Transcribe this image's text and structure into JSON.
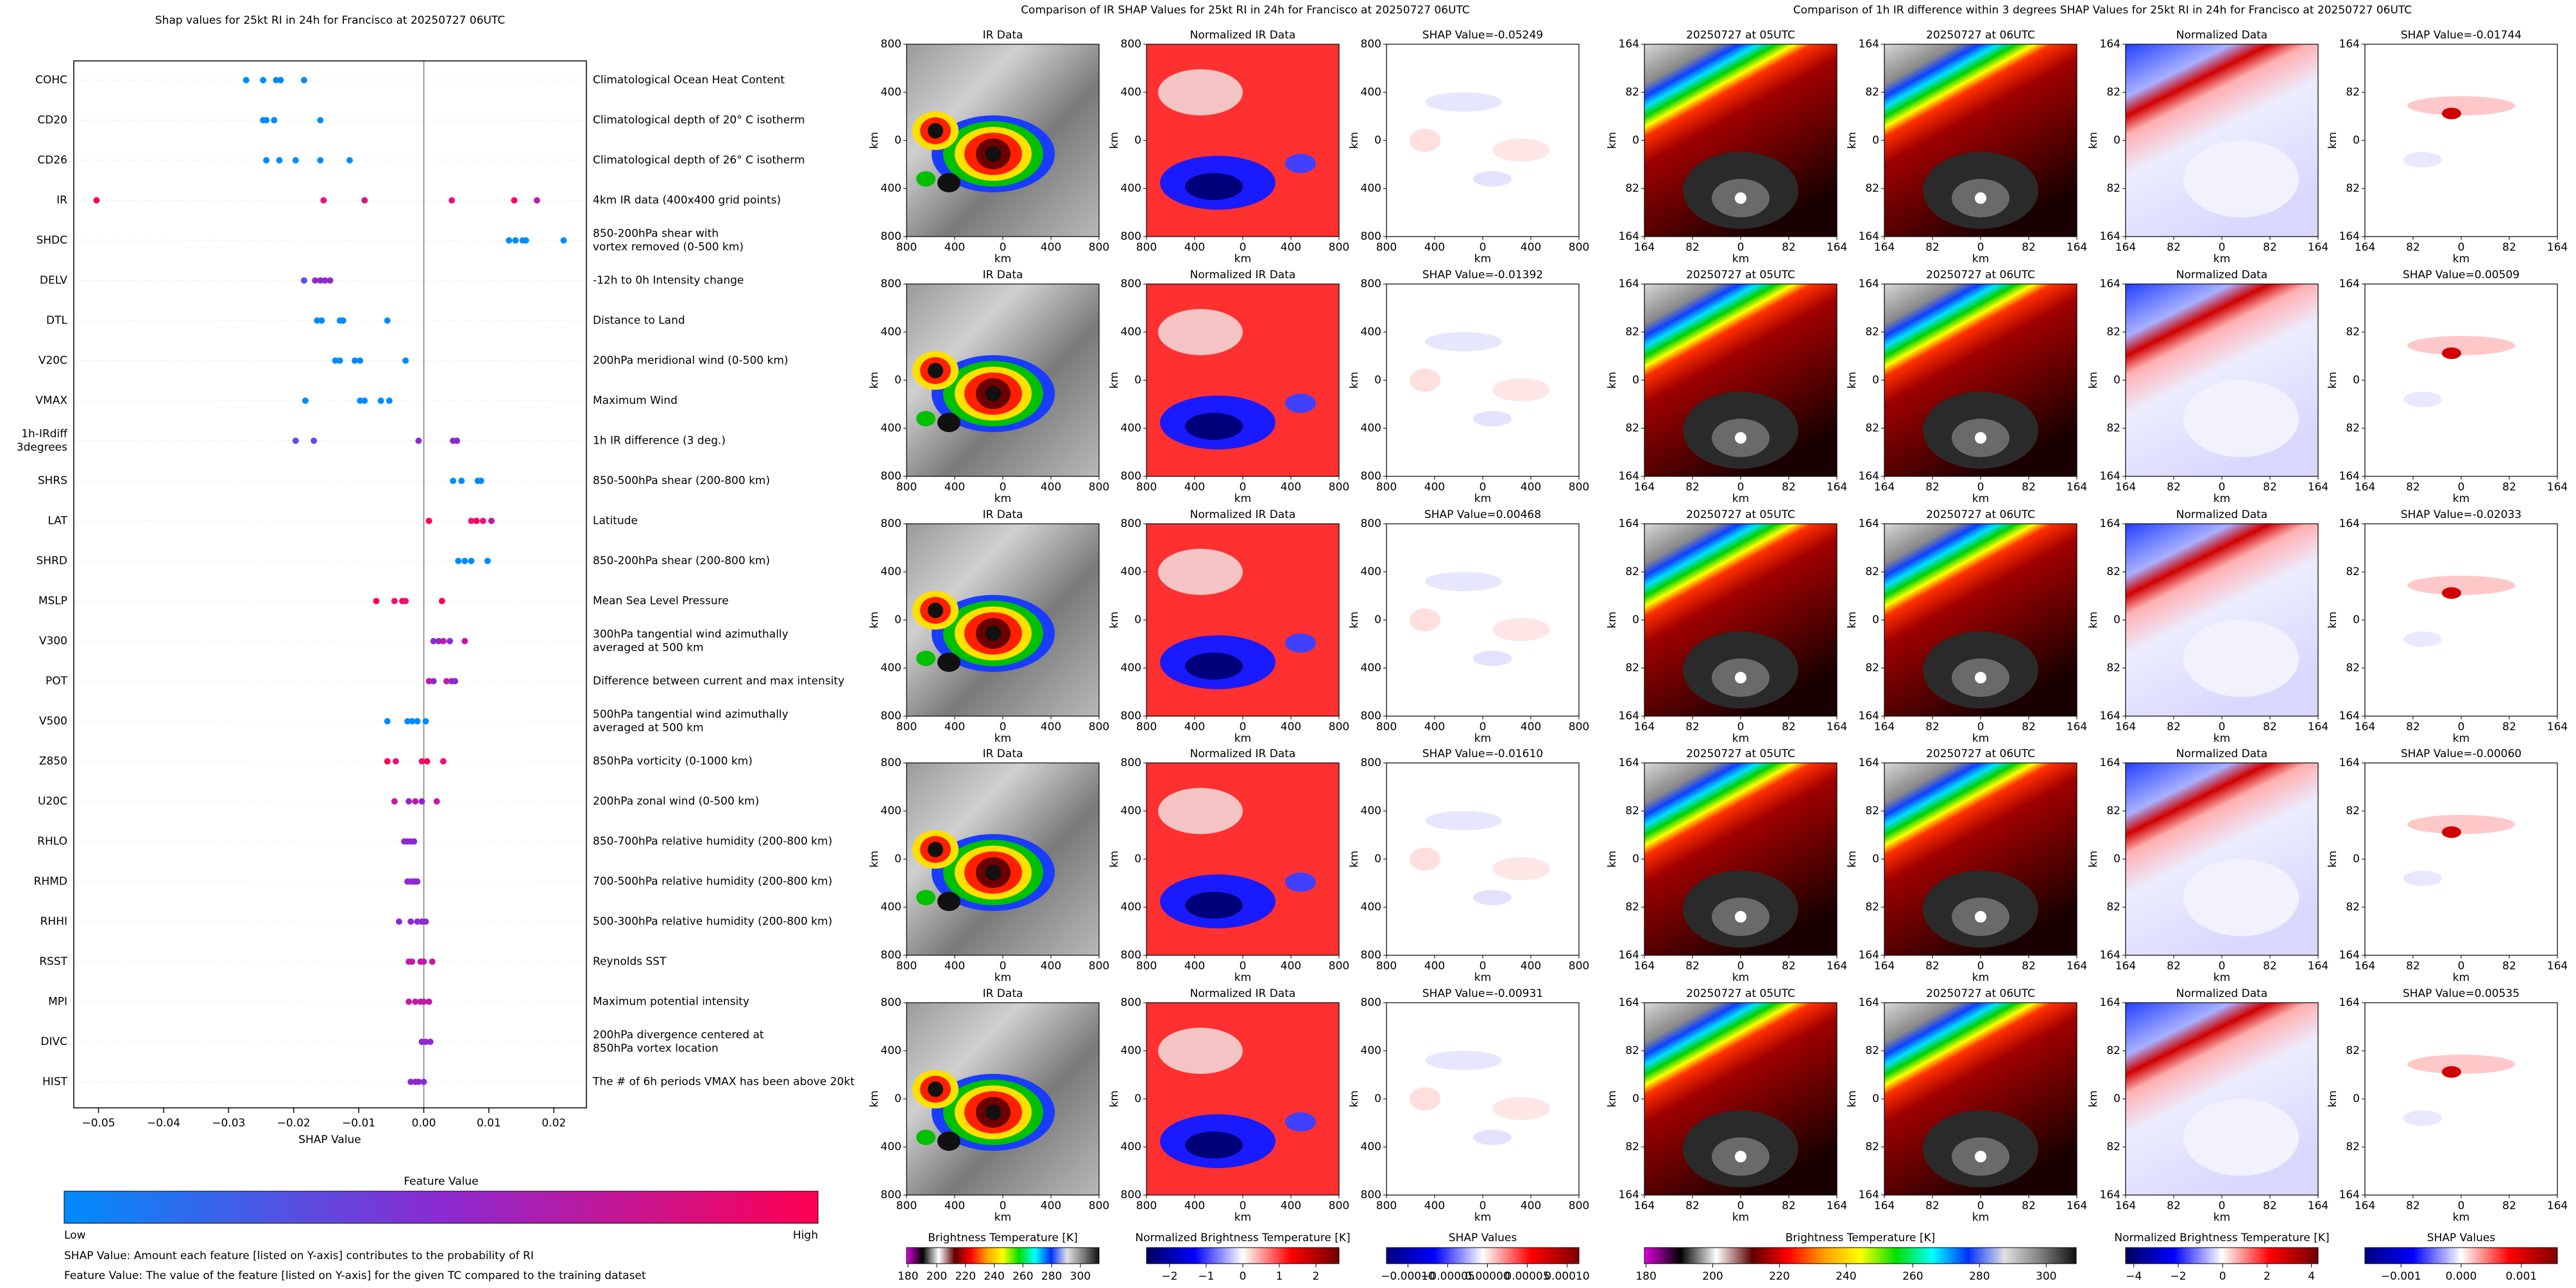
{
  "chart_data": [
    {
      "type": "scatter",
      "title": "Shap values for 25kt RI in 24h for Francisco at 20250727 06UTC",
      "xlabel": "SHAP Value",
      "xlim": [
        -0.0538,
        0.025
      ],
      "xticks": [
        {
          "value": -0.05,
          "label": "−0.05"
        },
        {
          "value": -0.04,
          "label": "−0.04"
        },
        {
          "value": -0.03,
          "label": "−0.03"
        },
        {
          "value": -0.02,
          "label": "−0.02"
        },
        {
          "value": -0.01,
          "label": "−0.01"
        },
        {
          "value": 0,
          "label": "0.00"
        },
        {
          "value": 0.01,
          "label": "0.01"
        },
        {
          "value": 0.02,
          "label": "0.02"
        }
      ],
      "features": [
        {
          "label": [
            "COHC"
          ],
          "description": [
            "Climatological Ocean Heat Content"
          ],
          "values": [
            -0.0273,
            -0.0247,
            -0.0227,
            -0.022,
            -0.0184
          ],
          "colors": [
            "#008bfb",
            "#008bfb",
            "#008bfb",
            "#008bfb",
            "#008bfb"
          ]
        },
        {
          "label": [
            "CD20"
          ],
          "description": [
            "Climatological depth of 20° C isotherm"
          ],
          "values": [
            -0.0247,
            -0.0242,
            -0.023,
            -0.0159
          ],
          "colors": [
            "#008bfb",
            "#008bfb",
            "#008bfb",
            "#008bfb"
          ]
        },
        {
          "label": [
            "CD26"
          ],
          "description": [
            "Climatological depth of 26° C isotherm"
          ],
          "values": [
            -0.0242,
            -0.0222,
            -0.0197,
            -0.0159,
            -0.0114
          ],
          "colors": [
            "#008bfb",
            "#008bfb",
            "#008bfb",
            "#008bfb",
            "#008bfb"
          ]
        },
        {
          "label": [
            "IR"
          ],
          "description": [
            "4km IR data (400x400 grid points)"
          ],
          "values": [
            -0.0503,
            -0.0154,
            -0.0091,
            0.0043,
            0.0139,
            0.0174
          ],
          "colors": [
            "#ff0052",
            "#e8127c",
            "#d8148c",
            "#e8127c",
            "#ff0066",
            "#c21aa6"
          ]
        },
        {
          "label": [
            "SHDC"
          ],
          "description": [
            "850-200hPa shear with",
            "vortex removed (0-500 km)"
          ],
          "values": [
            0.0131,
            0.0141,
            0.0152,
            0.0157,
            0.0215
          ],
          "colors": [
            "#008bfb",
            "#008bfb",
            "#008bfb",
            "#008bfb",
            "#008bfb"
          ]
        },
        {
          "label": [
            "DELV"
          ],
          "description": [
            "-12h to 0h Intensity change"
          ],
          "values": [
            -0.0184,
            -0.0167,
            -0.0159,
            -0.0152,
            -0.0144
          ],
          "colors": [
            "#5a4fe6",
            "#8c2ad0",
            "#8c2ad0",
            "#8c2ad0",
            "#8c2ad0"
          ]
        },
        {
          "label": [
            "DTL"
          ],
          "description": [
            "Distance to Land"
          ],
          "values": [
            -0.0164,
            -0.0157,
            -0.0129,
            -0.0124,
            -0.0056
          ],
          "colors": [
            "#008bfb",
            "#008bfb",
            "#008bfb",
            "#008bfb",
            "#008bfb"
          ]
        },
        {
          "label": [
            "V20C"
          ],
          "description": [
            "200hPa meridional wind (0-500 km)"
          ],
          "values": [
            -0.0136,
            -0.0129,
            -0.0106,
            -0.0098,
            -0.0028
          ],
          "colors": [
            "#008bfb",
            "#008bfb",
            "#008bfb",
            "#008bfb",
            "#008bfb"
          ]
        },
        {
          "label": [
            "VMAX"
          ],
          "description": [
            "Maximum Wind"
          ],
          "values": [
            -0.0182,
            -0.0098,
            -0.0091,
            -0.0066,
            -0.0053
          ],
          "colors": [
            "#008bfb",
            "#008bfb",
            "#008bfb",
            "#008bfb",
            "#008bfb"
          ]
        },
        {
          "label": [
            "1h-IRdiff",
            "3degrees"
          ],
          "description": [
            "1h IR difference (3 deg.)"
          ],
          "values": [
            -0.0197,
            -0.0169,
            -0.0008,
            0.0045,
            0.0051
          ],
          "colors": [
            "#5a4fe6",
            "#5a4fe6",
            "#8c2ad0",
            "#8c2ad0",
            "#8c2ad0"
          ]
        },
        {
          "label": [
            "SHRS"
          ],
          "description": [
            "850-500hPa shear (200-800 km)"
          ],
          "values": [
            0.0045,
            0.0058,
            0.0083,
            0.0088
          ],
          "colors": [
            "#008bfb",
            "#008bfb",
            "#008bfb",
            "#008bfb"
          ]
        },
        {
          "label": [
            "LAT"
          ],
          "description": [
            "Latitude"
          ],
          "values": [
            0.0008,
            0.0073,
            0.0081,
            0.0091,
            0.0104
          ],
          "colors": [
            "#ff0052",
            "#e8127c",
            "#ff0052",
            "#e8127c",
            "#c21aa6"
          ]
        },
        {
          "label": [
            "SHRD"
          ],
          "description": [
            "850-200hPa shear (200-800 km)"
          ],
          "values": [
            0.0053,
            0.0063,
            0.0073,
            0.0098
          ],
          "colors": [
            "#008bfb",
            "#008bfb",
            "#008bfb",
            "#008bfb"
          ]
        },
        {
          "label": [
            "MSLP"
          ],
          "description": [
            "Mean Sea Level Pressure"
          ],
          "values": [
            -0.0073,
            -0.0045,
            -0.0033,
            -0.0028,
            0.0028
          ],
          "colors": [
            "#ff0052",
            "#e8127c",
            "#ff0052",
            "#e8127c",
            "#ff0052"
          ]
        },
        {
          "label": [
            "V300"
          ],
          "description": [
            "300hPa tangential wind azimuthally",
            "averaged at 500 km"
          ],
          "values": [
            0.0015,
            0.0023,
            0.003,
            0.004,
            0.0063
          ],
          "colors": [
            "#8c2ad0",
            "#8c2ad0",
            "#c21aa6",
            "#8c2ad0",
            "#c21aa6"
          ]
        },
        {
          "label": [
            "POT"
          ],
          "description": [
            "Difference between current and max intensity"
          ],
          "values": [
            0.0008,
            0.0015,
            0.0035,
            0.0043,
            0.0048
          ],
          "colors": [
            "#c21aa6",
            "#8c2ad0",
            "#c21aa6",
            "#8c2ad0",
            "#8c2ad0"
          ]
        },
        {
          "label": [
            "V500"
          ],
          "description": [
            "500hPa tangential wind azimuthally",
            "averaged at 500 km"
          ],
          "values": [
            -0.0056,
            -0.0025,
            -0.0018,
            -0.001,
            0.0003
          ],
          "colors": [
            "#008bfb",
            "#008bfb",
            "#008bfb",
            "#008bfb",
            "#008bfb"
          ]
        },
        {
          "label": [
            "Z850"
          ],
          "description": [
            "850hPa vorticity (0-1000 km)"
          ],
          "values": [
            -0.0056,
            -0.0043,
            -0.0003,
            0.0005,
            0.003
          ],
          "colors": [
            "#ff0052",
            "#e8127c",
            "#e8127c",
            "#ff0052",
            "#e8127c"
          ]
        },
        {
          "label": [
            "U20C"
          ],
          "description": [
            "200hPa zonal wind (0-500 km)"
          ],
          "values": [
            -0.0045,
            -0.0023,
            -0.0013,
            -0.0003,
            0.002
          ],
          "colors": [
            "#c21aa6",
            "#8c2ad0",
            "#c21aa6",
            "#8c2ad0",
            "#c21aa6"
          ]
        },
        {
          "label": [
            "RHLO"
          ],
          "description": [
            "850-700hPa relative humidity (200-800 km)"
          ],
          "values": [
            -0.003,
            -0.0025,
            -0.002,
            -0.0015
          ],
          "colors": [
            "#8c2ad0",
            "#8c2ad0",
            "#8c2ad0",
            "#8c2ad0"
          ]
        },
        {
          "label": [
            "RHMD"
          ],
          "description": [
            "700-500hPa relative humidity (200-800 km)"
          ],
          "values": [
            -0.0025,
            -0.002,
            -0.0015,
            -0.0013,
            -0.001
          ],
          "colors": [
            "#8c2ad0",
            "#8c2ad0",
            "#8c2ad0",
            "#8c2ad0",
            "#8c2ad0"
          ]
        },
        {
          "label": [
            "RHHI"
          ],
          "description": [
            "500-300hPa relative humidity (200-800 km)"
          ],
          "values": [
            -0.0038,
            -0.002,
            -0.001,
            -0.0003,
            0.0003
          ],
          "colors": [
            "#8c2ad0",
            "#8c2ad0",
            "#8c2ad0",
            "#8c2ad0",
            "#8c2ad0"
          ]
        },
        {
          "label": [
            "RSST"
          ],
          "description": [
            "Reynolds SST"
          ],
          "values": [
            -0.0023,
            -0.0018,
            -0.0005,
            0.0,
            0.0013
          ],
          "colors": [
            "#c21aa6",
            "#c21aa6",
            "#c21aa6",
            "#c21aa6",
            "#c21aa6"
          ]
        },
        {
          "label": [
            "MPI"
          ],
          "description": [
            "Maximum potential intensity"
          ],
          "values": [
            -0.0023,
            -0.0013,
            -0.0005,
            0.0,
            0.0008
          ],
          "colors": [
            "#c21aa6",
            "#c21aa6",
            "#c21aa6",
            "#c21aa6",
            "#c21aa6"
          ]
        },
        {
          "label": [
            "DIVC"
          ],
          "description": [
            "200hPa divergence centered at",
            "850hPa vortex location"
          ],
          "values": [
            -0.0003,
            0.0003,
            0.001
          ],
          "colors": [
            "#8c2ad0",
            "#8c2ad0",
            "#8c2ad0"
          ]
        },
        {
          "label": [
            "HIST"
          ],
          "description": [
            "The # of 6h periods VMAX has been above 20kt"
          ],
          "values": [
            -0.002,
            -0.0013,
            -0.0008,
            0.0
          ],
          "colors": [
            "#8c2ad0",
            "#8c2ad0",
            "#8c2ad0",
            "#8c2ad0"
          ]
        }
      ],
      "colorbar": {
        "title": "Feature Value",
        "low": "Low",
        "high": "High",
        "colors": [
          "#008bfb",
          "#8c2ad0",
          "#ff0052"
        ]
      },
      "notes": [
        "SHAP Value: Amount each feature [listed on Y-axis] contributes to the probability of RI",
        "Feature Value: The value of the feature [listed on Y-axis] for the given TC compared to the training dataset"
      ]
    },
    {
      "type": "image",
      "title": "Comparison of IR SHAP Values for 25kt RI in 24h for Francisco at 20250727 06UTC",
      "xlabel": "km",
      "ylabel": "km",
      "xlim": [
        -800,
        800
      ],
      "xticks": [
        {
          "value": -800,
          "label": "800"
        },
        {
          "value": -400,
          "label": "400"
        },
        0,
        400,
        800
      ],
      "ylim": [
        -800,
        800
      ],
      "yticks": [
        800,
        400,
        0,
        {
          "value": -400,
          "label": "400"
        },
        {
          "value": -800,
          "label": "800"
        }
      ],
      "panel_titles": [
        [
          "IR Data",
          "Normalized IR Data",
          "SHAP Value=-0.05249"
        ],
        [
          "IR Data",
          "Normalized IR Data",
          "SHAP Value=-0.01392"
        ],
        [
          "IR Data",
          "Normalized IR Data",
          "SHAP Value=0.00468"
        ],
        [
          "IR Data",
          "Normalized IR Data",
          "SHAP Value=-0.01610"
        ],
        [
          "IR Data",
          "Normalized IR Data",
          "SHAP Value=-0.00931"
        ]
      ],
      "colorbars": [
        {
          "title": "Brightness Temperature [K]",
          "lim": [
            179,
            313
          ],
          "ticks": [
            180,
            200,
            220,
            240,
            260,
            280,
            300
          ],
          "colors": [
            "#e000e0",
            "#000000",
            "#ffffff",
            "#600000",
            "#ff0000",
            "#ffa000",
            "#ffff00",
            "#00e000",
            "#00ffff",
            "#0030ff",
            "#e0e0e0",
            "#808080",
            "#101010"
          ]
        },
        {
          "title": "Normalized Brightness Temperature [K]",
          "lim": [
            -2.63,
            2.63
          ],
          "ticks": [
            {
              "value": -2,
              "label": "−2"
            },
            {
              "value": -1,
              "label": "−1"
            },
            0,
            1,
            2
          ],
          "colors": [
            "#000060",
            "#0000ff",
            "#ffffff",
            "#ff0000",
            "#700000"
          ]
        },
        {
          "title": "SHAP Values",
          "lim": [
            -0.000127,
            0.000115
          ],
          "ticks": [
            {
              "value": -0.0001,
              "label": "−0.00010"
            },
            {
              "value": -5e-05,
              "label": "−0.00005"
            },
            {
              "value": 0,
              "label": "0.00000"
            },
            {
              "value": 5e-05,
              "label": "0.00005"
            },
            {
              "value": 0.0001,
              "label": "0.00010"
            }
          ],
          "colors": [
            "#000080",
            "#0000ff",
            "#ffffff",
            "#ff0000",
            "#800000"
          ]
        }
      ]
    },
    {
      "type": "image",
      "title": "Comparison of 1h IR difference within 3 degrees SHAP Values for 25kt RI in 24h for Francisco at 20250727 06UTC",
      "xlabel": "km",
      "ylabel": "km",
      "xlim": [
        -164,
        164
      ],
      "xticks": [
        {
          "value": -164,
          "label": "164"
        },
        {
          "value": -82,
          "label": "82"
        },
        0,
        82,
        164
      ],
      "ylim": [
        -164,
        164
      ],
      "yticks": [
        164,
        82,
        0,
        {
          "value": -82,
          "label": "82"
        },
        {
          "value": -164,
          "label": "164"
        }
      ],
      "panel_titles": [
        [
          "20250727 at 05UTC",
          "20250727 at 06UTC",
          "Normalized Data",
          "SHAP Value=-0.01744"
        ],
        [
          "20250727 at 05UTC",
          "20250727 at 06UTC",
          "Normalized Data",
          "SHAP Value=0.00509"
        ],
        [
          "20250727 at 05UTC",
          "20250727 at 06UTC",
          "Normalized Data",
          "SHAP Value=-0.02033"
        ],
        [
          "20250727 at 05UTC",
          "20250727 at 06UTC",
          "Normalized Data",
          "SHAP Value=-0.00060"
        ],
        [
          "20250727 at 05UTC",
          "20250727 at 06UTC",
          "Normalized Data",
          "SHAP Value=0.00535"
        ]
      ],
      "colorbars": [
        {
          "title": "Brightness Temperature [K]",
          "lim": [
            179.5,
            309
          ],
          "ticks": [
            180,
            200,
            220,
            240,
            260,
            280,
            300
          ],
          "colors": [
            "#e000e0",
            "#000000",
            "#ffffff",
            "#600000",
            "#ff0000",
            "#ffa000",
            "#ffff00",
            "#00e000",
            "#00ffff",
            "#0030ff",
            "#e0e0e0",
            "#808080",
            "#101010"
          ]
        },
        {
          "title": "Normalized Brightness Temperature [K]",
          "lim": [
            -4.37,
            4.3
          ],
          "ticks": [
            {
              "value": -4,
              "label": "−4"
            },
            {
              "value": -2,
              "label": "−2"
            },
            0,
            2,
            4
          ],
          "colors": [
            "#000060",
            "#0000ff",
            "#ffffff",
            "#ff0000",
            "#700000"
          ]
        },
        {
          "title": "SHAP Values",
          "lim": [
            -0.0016,
            0.0016
          ],
          "ticks": [
            {
              "value": -0.001,
              "label": "−0.001"
            },
            {
              "value": 0,
              "label": "0.000"
            },
            {
              "value": 0.001,
              "label": "0.001"
            }
          ],
          "colors": [
            "#000080",
            "#0000ff",
            "#ffffff",
            "#ff0000",
            "#800000"
          ]
        }
      ]
    }
  ]
}
